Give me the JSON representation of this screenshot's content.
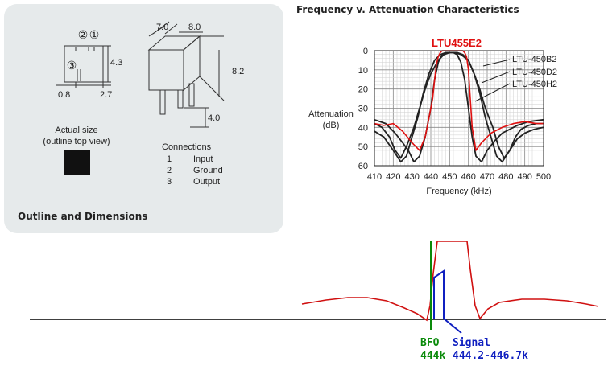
{
  "outline": {
    "title": "Outline and Dimensions",
    "top_view": {
      "pin_label_2": "②",
      "pin_label_1": "①",
      "pin_label_3": "③",
      "dim_height": "4.3",
      "dim_pitch": "0.8",
      "dim_span": "2.7"
    },
    "side_view": {
      "dim_width_a": "7.0",
      "dim_width_b": "8.0",
      "dim_height": "8.2",
      "dim_pin_length": "4.0"
    },
    "actual_size_line1": "Actual size",
    "actual_size_line2": "(outline top view)",
    "connections": {
      "title": "Connections",
      "rows": [
        {
          "num": "1",
          "label": "Input"
        },
        {
          "num": "2",
          "label": "Ground"
        },
        {
          "num": "3",
          "label": "Output"
        }
      ]
    }
  },
  "chart_title": "Frequency v. Attenuation Characteristics",
  "chart_data": {
    "type": "line",
    "xlabel": "Frequency (kHz)",
    "ylabel_line1": "Attenuation",
    "ylabel_line2": "(dB)",
    "xlim": [
      410,
      500
    ],
    "ylim": [
      0,
      60
    ],
    "y_inverted": true,
    "x_ticks": [
      410,
      420,
      430,
      440,
      450,
      460,
      470,
      480,
      490,
      500
    ],
    "y_ticks": [
      0,
      10,
      20,
      30,
      40,
      50,
      60
    ],
    "grid": true,
    "highlight_label": "LTU455E2",
    "highlight_color": "#e01010",
    "series": [
      {
        "name": "LTU-450B2",
        "color": "#222222",
        "x": [
          410,
          414,
          418,
          421,
          424,
          427,
          431,
          434,
          437,
          440,
          444,
          447,
          450,
          453,
          456,
          460,
          463,
          466,
          469,
          473,
          476,
          479,
          482,
          485,
          488,
          492,
          496,
          500
        ],
        "y": [
          38,
          40,
          45,
          52,
          56,
          50,
          40,
          30,
          20,
          12,
          5,
          2,
          1,
          1,
          2,
          5,
          12,
          20,
          30,
          40,
          50,
          56,
          52,
          45,
          41,
          39,
          38,
          38
        ]
      },
      {
        "name": "LTU-450D2",
        "color": "#222222",
        "x": [
          410,
          415,
          420,
          424,
          427,
          430,
          433,
          436,
          439,
          442,
          445,
          448,
          451,
          454,
          457,
          460,
          463,
          466,
          469,
          472,
          475,
          478,
          482,
          486,
          490,
          495,
          500
        ],
        "y": [
          42,
          45,
          52,
          58,
          55,
          45,
          35,
          22,
          12,
          5,
          2,
          1,
          1,
          1,
          2,
          5,
          12,
          22,
          35,
          45,
          55,
          58,
          52,
          46,
          43,
          41,
          40
        ]
      },
      {
        "name": "LTU-450H2",
        "color": "#222222",
        "x": [
          410,
          416,
          421,
          425,
          428,
          431,
          434,
          437,
          440,
          442,
          444,
          446,
          448,
          450,
          452,
          454,
          456,
          458,
          460,
          462,
          464,
          467,
          470,
          474,
          478,
          482,
          486,
          492,
          500
        ],
        "y": [
          36,
          38,
          43,
          48,
          52,
          58,
          55,
          45,
          30,
          15,
          6,
          2,
          1,
          1,
          1,
          2,
          6,
          15,
          30,
          45,
          55,
          58,
          52,
          47,
          43,
          41,
          39,
          37,
          36
        ]
      },
      {
        "name": "LTU455E2",
        "color": "#e01010",
        "x": [
          410,
          415,
          420,
          425,
          430,
          434,
          437,
          439,
          441,
          442,
          443,
          444,
          445,
          446,
          447,
          452,
          457,
          458,
          459,
          460,
          461,
          462,
          464,
          467,
          472,
          478,
          484,
          490,
          496,
          500
        ],
        "y": [
          38,
          39,
          38,
          42,
          48,
          52,
          45,
          35,
          25,
          15,
          7,
          3,
          1,
          0,
          0,
          0,
          0,
          1,
          3,
          10,
          25,
          40,
          52,
          48,
          43,
          40,
          38,
          37,
          38,
          38
        ]
      }
    ]
  },
  "sketch": {
    "bfo_label": "BFO",
    "bfo_freq": "444k",
    "signal_label": "Signal",
    "signal_freq": "444.2-446.7k",
    "colors": {
      "filter": "#d01010",
      "bfo": "#0a8a0a",
      "signal": "#1020c0",
      "baseline": "#000000"
    }
  }
}
